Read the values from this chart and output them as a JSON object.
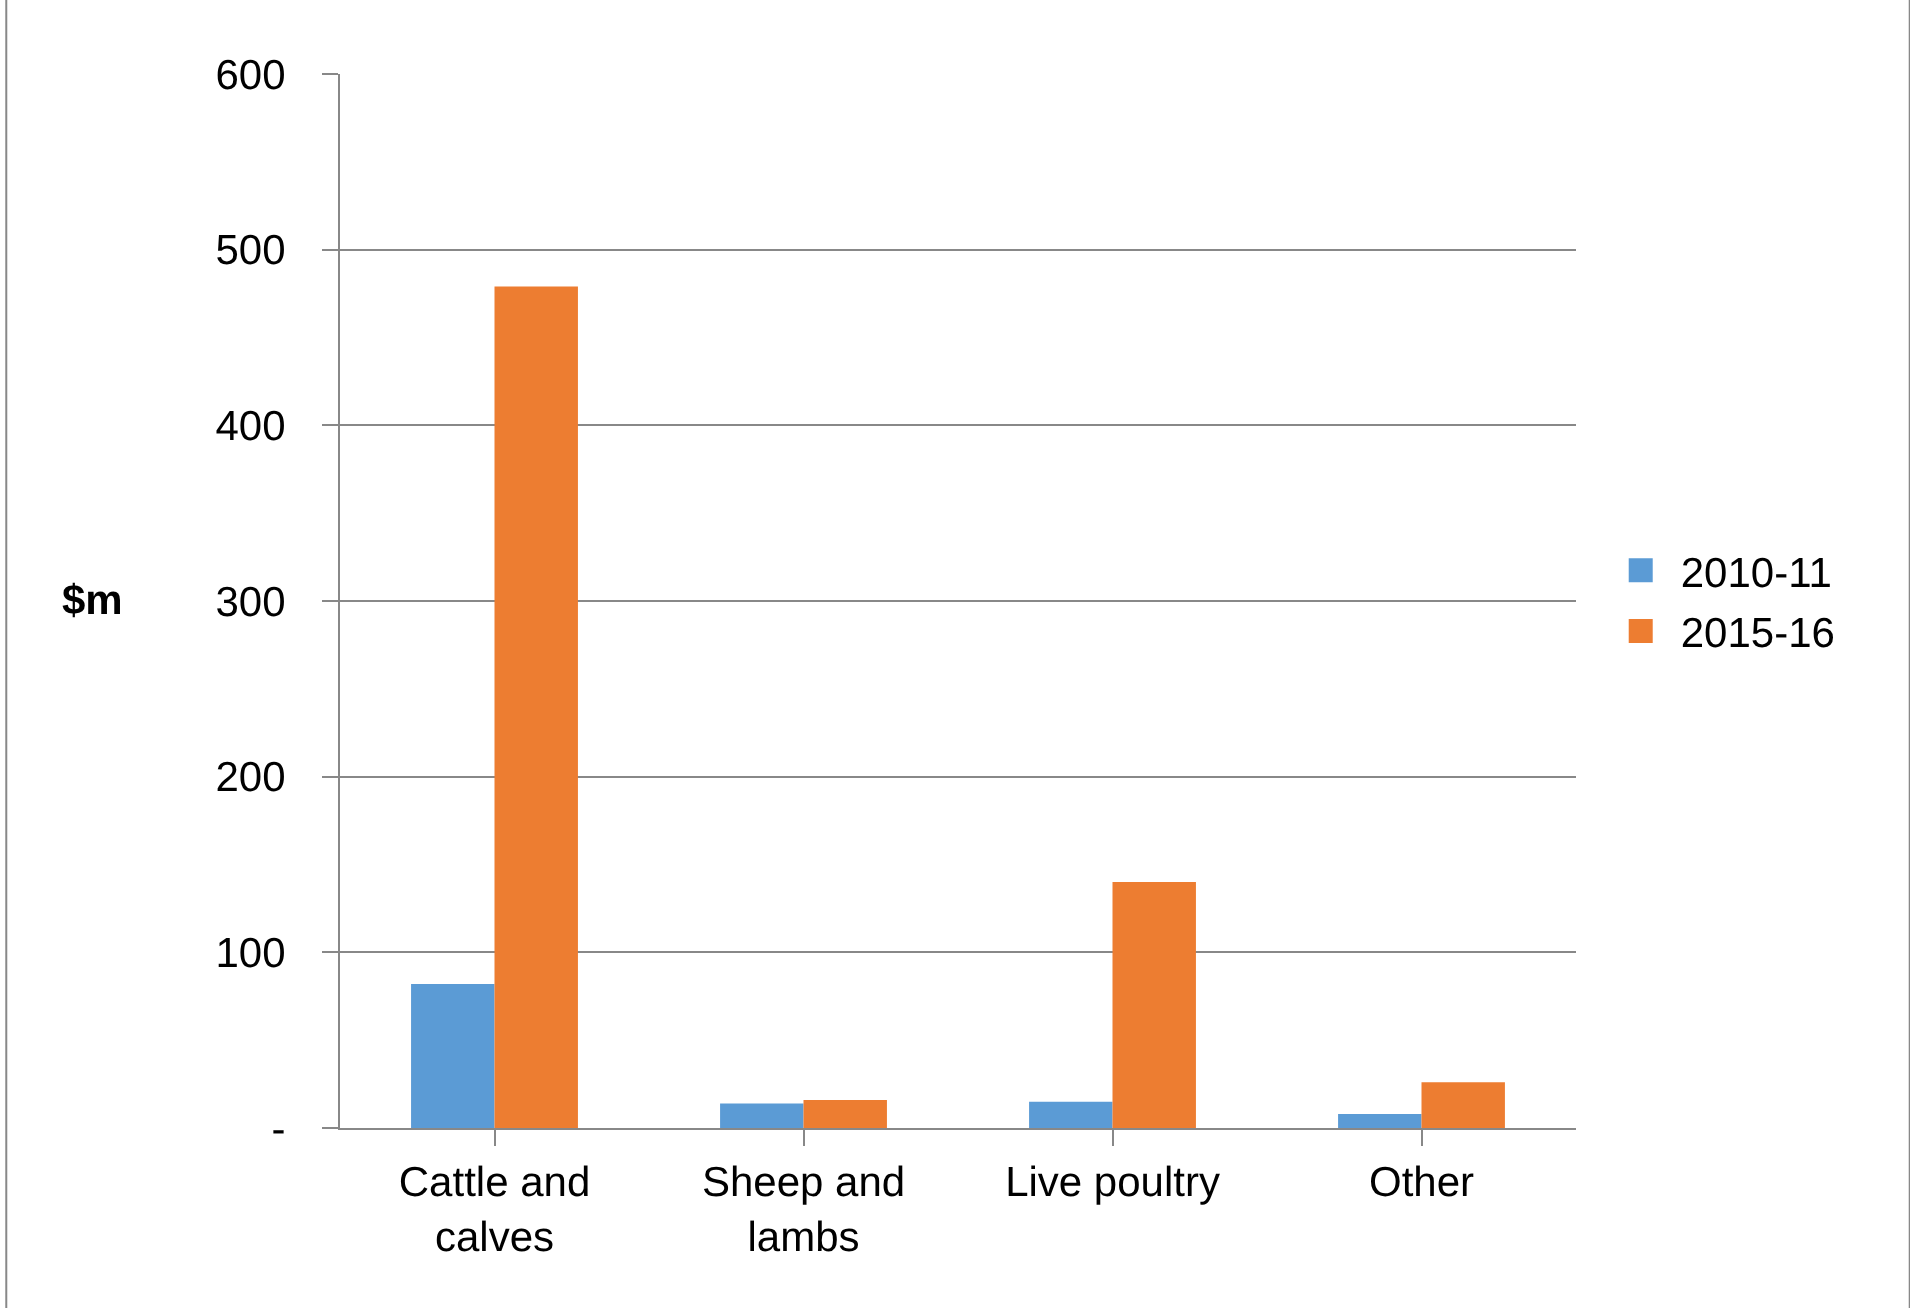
{
  "chart_data": {
    "type": "bar",
    "ylabel": "$m",
    "categories": [
      "Cattle and calves",
      "Sheep and lambs",
      "Live poultry",
      "Other"
    ],
    "series": [
      {
        "name": "2010-11",
        "color": "#5b9bd5",
        "values": [
          82,
          14,
          15,
          8
        ]
      },
      {
        "name": "2015-16",
        "color": "#ed7d31",
        "values": [
          479,
          16,
          140,
          26
        ]
      }
    ],
    "ylim": [
      0,
      600
    ],
    "yticks": [
      {
        "value": 0,
        "label": "-"
      },
      100,
      200,
      300,
      400,
      500,
      600
    ],
    "grid": "y",
    "legend": "right"
  }
}
